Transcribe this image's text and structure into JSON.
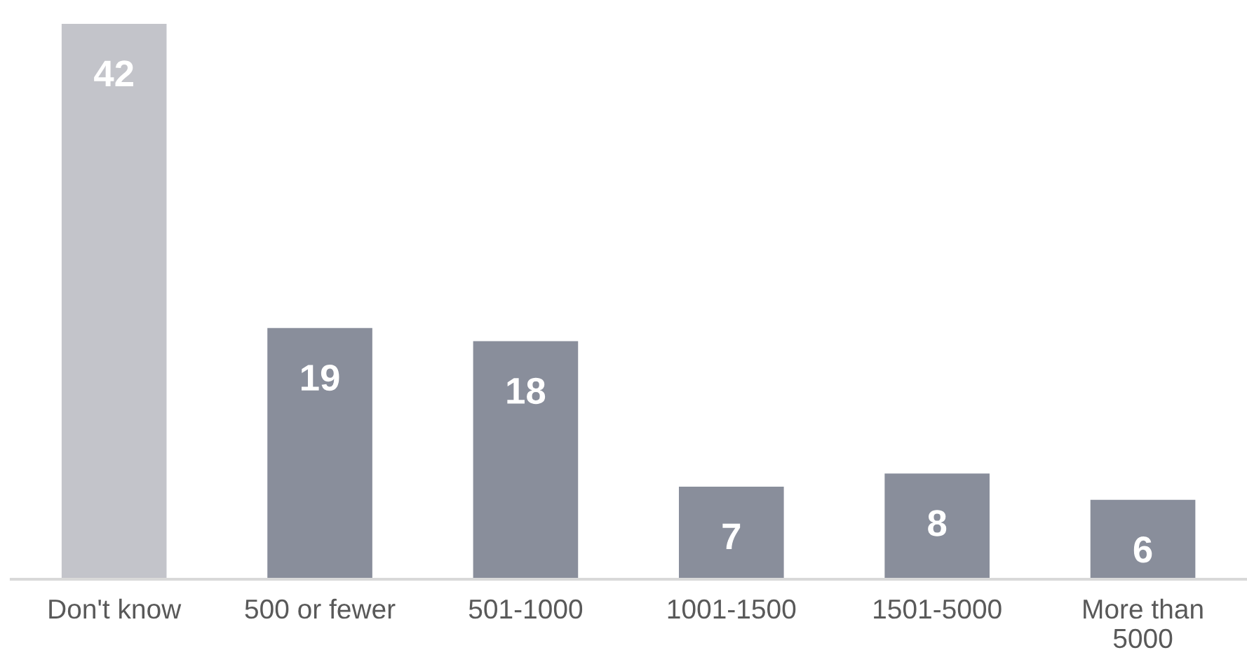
{
  "chart_data": {
    "type": "bar",
    "categories": [
      "Don't know",
      "500 or fewer",
      "501-1000",
      "1001-1500",
      "1501-5000",
      "More than\n5000"
    ],
    "values": [
      42,
      19,
      18,
      7,
      8,
      6
    ],
    "colors": [
      "#c3c4ca",
      "#898e9b",
      "#898e9b",
      "#898e9b",
      "#898e9b",
      "#898e9b"
    ],
    "data_labels": true,
    "grid": false,
    "legend": false
  }
}
